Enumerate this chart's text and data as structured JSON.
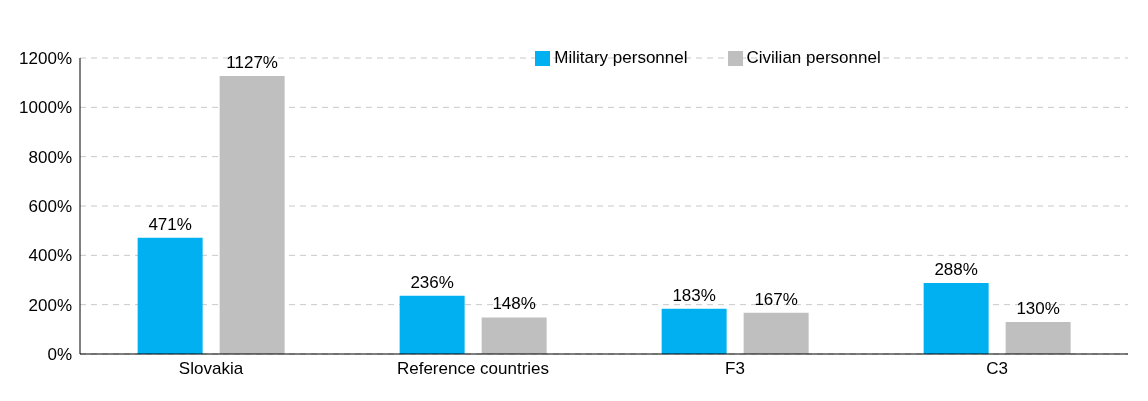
{
  "chart_data": {
    "type": "bar",
    "categories": [
      "Slovakia",
      "Reference countries",
      "F3",
      "C3"
    ],
    "series": [
      {
        "name": "Military personnel",
        "color": "#00b0f0",
        "values": [
          471,
          236,
          183,
          288
        ],
        "value_labels": [
          "471%",
          "236%",
          "183%",
          "288%"
        ]
      },
      {
        "name": "Civilian personnel",
        "color": "#bfbfbf",
        "values": [
          1127,
          148,
          167,
          130
        ],
        "value_labels": [
          "1127%",
          "148%",
          "167%",
          "130%"
        ]
      }
    ],
    "ylim": [
      0,
      1200
    ],
    "yticks": [
      {
        "value": 0,
        "label": "0%"
      },
      {
        "value": 200,
        "label": "200%"
      },
      {
        "value": 400,
        "label": "400%"
      },
      {
        "value": 600,
        "label": "600%"
      },
      {
        "value": 800,
        "label": "800%"
      },
      {
        "value": 1000,
        "label": "1000%"
      },
      {
        "value": 1200,
        "label": "1200%"
      }
    ],
    "grid": "y",
    "legend": "top"
  }
}
